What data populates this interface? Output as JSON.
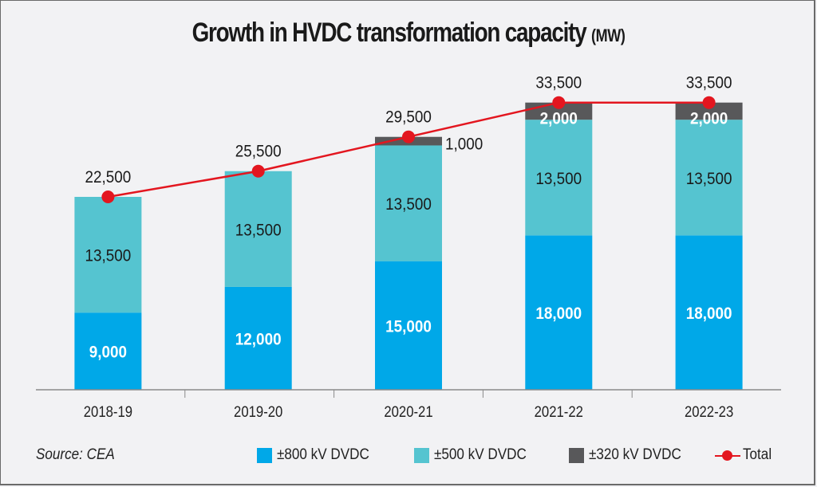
{
  "chart_data": {
    "type": "bar",
    "stacked": true,
    "title": "Growth in HVDC transformation capacity",
    "title_unit": "(MW)",
    "xlabel": "",
    "ylabel": "",
    "categories": [
      "2018-19",
      "2019-20",
      "2020-21",
      "2021-22",
      "2022-23"
    ],
    "series": [
      {
        "name": "±800 kV DVDC",
        "color": "#00a8e8",
        "values": [
          9000,
          12000,
          15000,
          18000,
          18000
        ],
        "labels": [
          "9,000",
          "12,000",
          "15,000",
          "18,000",
          "18,000"
        ],
        "label_color": "#ffffff"
      },
      {
        "name": "±500 kV DVDC",
        "color": "#55c4d0",
        "values": [
          13500,
          13500,
          13500,
          13500,
          13500
        ],
        "labels": [
          "13,500",
          "13,500",
          "13,500",
          "13,500",
          "13,500"
        ],
        "label_color": "#1a1a1a"
      },
      {
        "name": "±320 kV DVDC",
        "color": "#58585a",
        "values": [
          0,
          0,
          1000,
          2000,
          2000
        ],
        "labels": [
          "",
          "",
          "1,000",
          "2,000",
          "2,000"
        ],
        "label_color": "#ffffff"
      }
    ],
    "line_series": {
      "name": "Total",
      "color": "#e3161f",
      "values": [
        22500,
        25500,
        29500,
        33500,
        33500
      ],
      "labels": [
        "22,500",
        "25,500",
        "29,500",
        "33,500",
        "33,500"
      ]
    },
    "ylim": [
      0,
      35000
    ],
    "grid": false,
    "y_axis_visible": false,
    "legend_position": "bottom-right",
    "source": "Source: CEA"
  },
  "legend": {
    "source": "Source: CEA",
    "items": [
      {
        "label": "±800 kV DVDC",
        "color": "#00a8e8",
        "kind": "box"
      },
      {
        "label": "±500 kV DVDC",
        "color": "#55c4d0",
        "kind": "box"
      },
      {
        "label": "±320 kV DVDC",
        "color": "#58585a",
        "kind": "box"
      },
      {
        "label": "Total",
        "color": "#e3161f",
        "kind": "line"
      }
    ]
  }
}
